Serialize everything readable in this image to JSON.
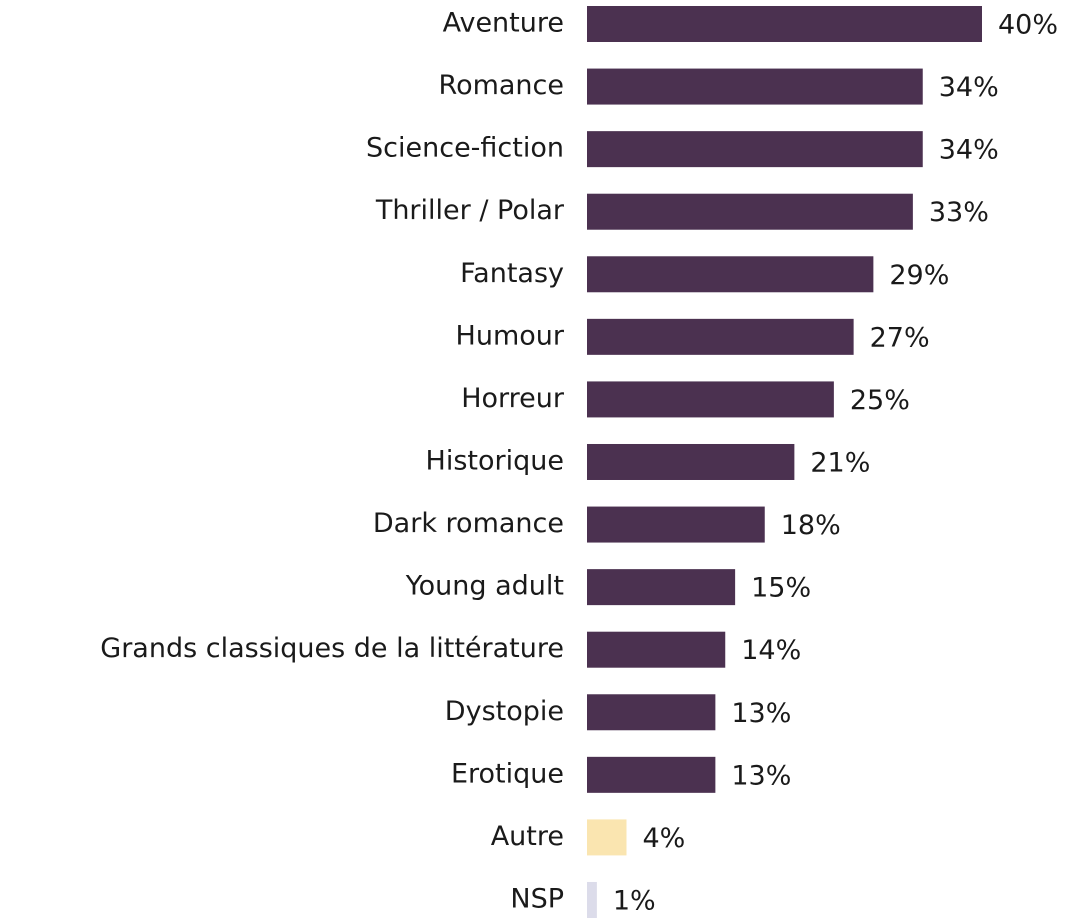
{
  "chart_data": {
    "type": "barh",
    "categories": [
      "Aventure",
      "Romance",
      "Science-fiction",
      "Thriller / Polar",
      "Fantasy",
      "Humour",
      "Horreur",
      "Historique",
      "Dark romance",
      "Young adult",
      "Grands classiques de la littérature",
      "Dystopie",
      "Erotique",
      "Autre",
      "NSP"
    ],
    "values": [
      40,
      34,
      34,
      33,
      29,
      27,
      25,
      21,
      18,
      15,
      14,
      13,
      13,
      4,
      1
    ],
    "value_labels": [
      "40%",
      "34%",
      "34%",
      "33%",
      "29%",
      "27%",
      "25%",
      "21%",
      "18%",
      "15%",
      "14%",
      "13%",
      "13%",
      "4%",
      "1%"
    ],
    "colors": [
      "#4b3150",
      "#4b3150",
      "#4b3150",
      "#4b3150",
      "#4b3150",
      "#4b3150",
      "#4b3150",
      "#4b3150",
      "#4b3150",
      "#4b3150",
      "#4b3150",
      "#4b3150",
      "#4b3150",
      "#fae5b0",
      "#dcdcea"
    ]
  }
}
